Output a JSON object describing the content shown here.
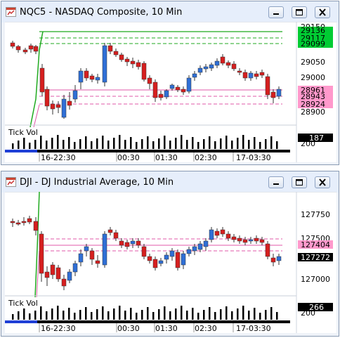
{
  "windows": [
    {
      "title": "NQC5 - NASDAQ Composite, 10 Min",
      "price_axis": [
        "29150",
        "29050",
        "29000",
        "28950",
        "28900"
      ],
      "price_tags": [
        {
          "label": "29136",
          "bg": "#00cc33",
          "fg": "#000000"
        },
        {
          "label": "29117",
          "bg": "#00cc33",
          "fg": "#000000"
        },
        {
          "label": "29099",
          "bg": "#00cc33",
          "fg": "#000000"
        },
        {
          "label": "28961",
          "bg": "#ff99cc",
          "fg": "#000000"
        },
        {
          "label": "28943",
          "bg": "#ff99cc",
          "fg": "#000000"
        },
        {
          "label": "28924",
          "bg": "#ff99cc",
          "fg": "#000000"
        }
      ],
      "volume_label": "Tick Vol",
      "volume_values": [
        "187",
        "200"
      ],
      "time_labels": [
        "16-22:30",
        "00:30",
        "01:30",
        "02:30",
        "17-03:30"
      ]
    },
    {
      "title": "DJI - DJ Industrial Average, 10 Min",
      "price_axis": [
        "127750",
        "127500",
        "127000"
      ],
      "price_tags": [
        {
          "label": "127404",
          "bg": "#ff99cc",
          "fg": "#000000"
        },
        {
          "label": "127272",
          "bg": "#000000",
          "fg": "#ffffff"
        }
      ],
      "volume_label": "Tick Vol",
      "volume_values": [
        "266",
        "200"
      ],
      "time_labels": [
        "16-22:30",
        "00:30",
        "01:30",
        "02:30",
        "17-03:30"
      ]
    }
  ],
  "colors": {
    "up_candle": "#2f6fd6",
    "down_candle": "#d61f1f",
    "green_level": "#1faa1f",
    "pink_level": "#e05aa8",
    "session_bar": "#1f3fd6"
  },
  "icons": [
    "app-window-icon",
    "minimize-icon",
    "restore-icon",
    "close-icon"
  ]
}
